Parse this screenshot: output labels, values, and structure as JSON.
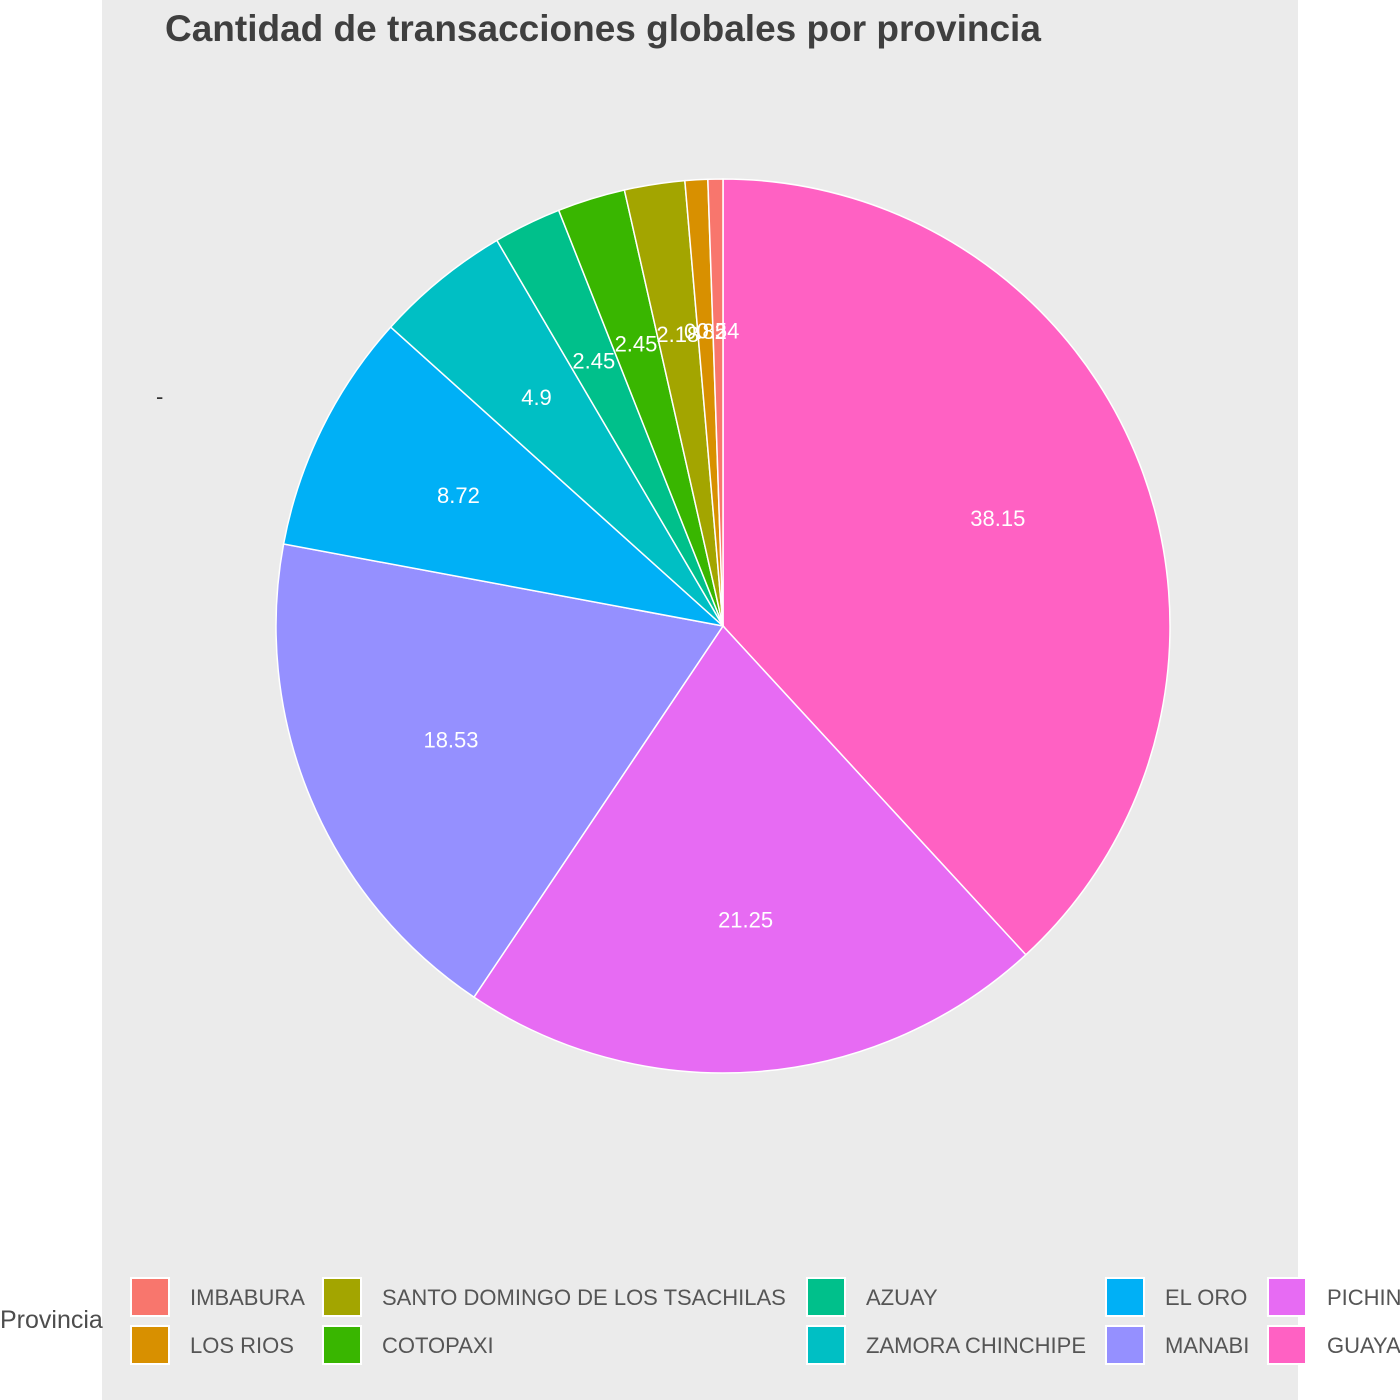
{
  "chart_data": {
    "type": "pie",
    "title": "Cantidad de transacciones globales por provincia",
    "axis_label": "-",
    "legend_title": "Provincia",
    "legend_placement": "bottom",
    "slices": [
      {
        "name": "GUAYAS",
        "legend_label": "GUAYA",
        "value": 38.15,
        "label": "38.15",
        "color": "#FF61C3"
      },
      {
        "name": "PICHINCHA",
        "legend_label": "PICHIN",
        "value": 21.25,
        "label": "21.25",
        "color": "#E76BF3"
      },
      {
        "name": "MANABI",
        "legend_label": "MANABI",
        "value": 18.53,
        "label": "18.53",
        "color": "#9590FF"
      },
      {
        "name": "EL ORO",
        "legend_label": "EL ORO",
        "value": 8.72,
        "label": "8.72",
        "color": "#00B0F6"
      },
      {
        "name": "ZAMORA CHINCHIPE",
        "legend_label": "ZAMORA CHINCHIPE",
        "value": 4.9,
        "label": "4.9",
        "color": "#00BFC4"
      },
      {
        "name": "AZUAY",
        "legend_label": "AZUAY",
        "value": 2.45,
        "label": "2.45",
        "color": "#00C08B"
      },
      {
        "name": "COTOPAXI",
        "legend_label": "COTOPAXI",
        "value": 2.45,
        "label": "2.45",
        "color": "#39B600"
      },
      {
        "name": "SANTO DOMINGO DE LOS TSACHILAS",
        "legend_label": "SANTO DOMINGO DE LOS TSACHILAS",
        "value": 2.18,
        "label": "2.18",
        "color": "#A3A500"
      },
      {
        "name": "LOS RIOS",
        "legend_label": "LOS RIOS",
        "value": 0.82,
        "label": "0.82",
        "color": "#D89000"
      },
      {
        "name": "IMBABURA",
        "legend_label": "IMBABURA",
        "value": 0.54,
        "label": "0.54",
        "color": "#F8766D"
      }
    ],
    "legend_order": [
      "IMBABURA",
      "LOS RIOS",
      "SANTO DOMINGO DE LOS TSACHILAS",
      "COTOPAXI",
      "AZUAY",
      "ZAMORA CHINCHIPE",
      "EL ORO",
      "MANABI",
      "PICHINCHA",
      "GUAYAS"
    ]
  }
}
